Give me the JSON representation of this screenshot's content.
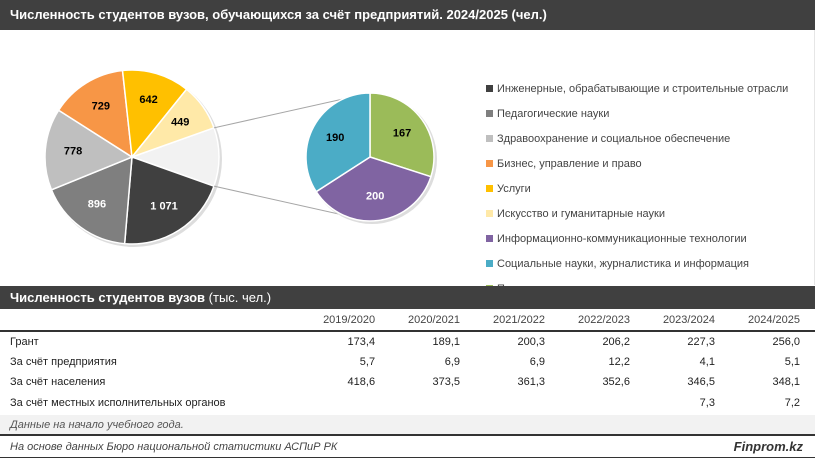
{
  "title": "Численность студентов вузов, обучающихся за счёт предприятий. 2024/2025 (чел.)",
  "chart_data": {
    "type": "pie-of-pie",
    "title": "Численность студентов вузов, обучающихся за счёт предприятий. 2024/2025 (чел.)",
    "main": [
      {
        "name": "Инженерные, обрабатывающие и строительные отрасли",
        "value": 1071,
        "label": "1 071",
        "color": "#404040",
        "labelColor": "#fff"
      },
      {
        "name": "Педагогические науки",
        "value": 896,
        "label": "896",
        "color": "#7f7f7f",
        "labelColor": "#fff"
      },
      {
        "name": "Здравоохранение и социальное обеспечение",
        "value": 778,
        "label": "778",
        "color": "#bfbfbf",
        "labelColor": "#000"
      },
      {
        "name": "Бизнес, управление и право",
        "value": 729,
        "label": "729",
        "color": "#f79646",
        "labelColor": "#000"
      },
      {
        "name": "Услуги",
        "value": 642,
        "label": "642",
        "color": "#ffc000",
        "labelColor": "#000"
      },
      {
        "name": "Искусство и гуманитарные науки",
        "value": 449,
        "label": "449",
        "color": "#ffe9a8",
        "labelColor": "#000"
      }
    ],
    "other_color": "#f2f2f2",
    "secondary": [
      {
        "name": "Прочие",
        "value": 167,
        "label": "167",
        "color": "#9bbb59",
        "labelColor": "#000"
      },
      {
        "name": "Информационно-коммуникационные технологии",
        "value": 200,
        "label": "200",
        "color": "#8064a2",
        "labelColor": "#fff"
      },
      {
        "name": "Социальные науки, журналистика и информация",
        "value": 190,
        "label": "190",
        "color": "#4bacc6",
        "labelColor": "#000"
      }
    ],
    "legend": [
      {
        "label": "Инженерные, обрабатывающие и строительные отрасли",
        "color": "#404040"
      },
      {
        "label": "Педагогические науки",
        "color": "#7f7f7f"
      },
      {
        "label": "Здравоохранение и социальное обеспечение",
        "color": "#bfbfbf"
      },
      {
        "label": "Бизнес, управление и право",
        "color": "#f79646"
      },
      {
        "label": "Услуги",
        "color": "#ffc000"
      },
      {
        "label": "Искусство и гуманитарные науки",
        "color": "#ffe9a8"
      },
      {
        "label": "Информационно-коммуникационные технологии",
        "color": "#8064a2"
      },
      {
        "label": "Социальные науки, журналистика и информация",
        "color": "#4bacc6"
      },
      {
        "label": "Прочие",
        "color": "#9bbb59"
      }
    ],
    "legend_position": "right"
  },
  "table": {
    "title": "Численность студентов вузов",
    "unit": "(тыс. чел.)",
    "columns": [
      "2019/2020",
      "2020/2021",
      "2021/2022",
      "2022/2023",
      "2023/2024",
      "2024/2025"
    ],
    "rows": [
      {
        "label": "Грант",
        "values": [
          "173,4",
          "189,1",
          "200,3",
          "206,2",
          "227,3",
          "256,0"
        ]
      },
      {
        "label": "За счёт предприятия",
        "values": [
          "5,7",
          "6,9",
          "6,9",
          "12,2",
          "4,1",
          "5,1"
        ]
      },
      {
        "label": "За счёт населения",
        "values": [
          "418,6",
          "373,5",
          "361,3",
          "352,6",
          "346,5",
          "348,1"
        ]
      },
      {
        "label": "За счёт местных исполнительных органов",
        "values": [
          "",
          "",
          "",
          "",
          "7,3",
          "7,2"
        ]
      }
    ],
    "note": "Данные на начало учебного года."
  },
  "footer": {
    "source": "На основе данных Бюро национальной статистики АСПиР РК",
    "brand": "Finprom.kz"
  }
}
